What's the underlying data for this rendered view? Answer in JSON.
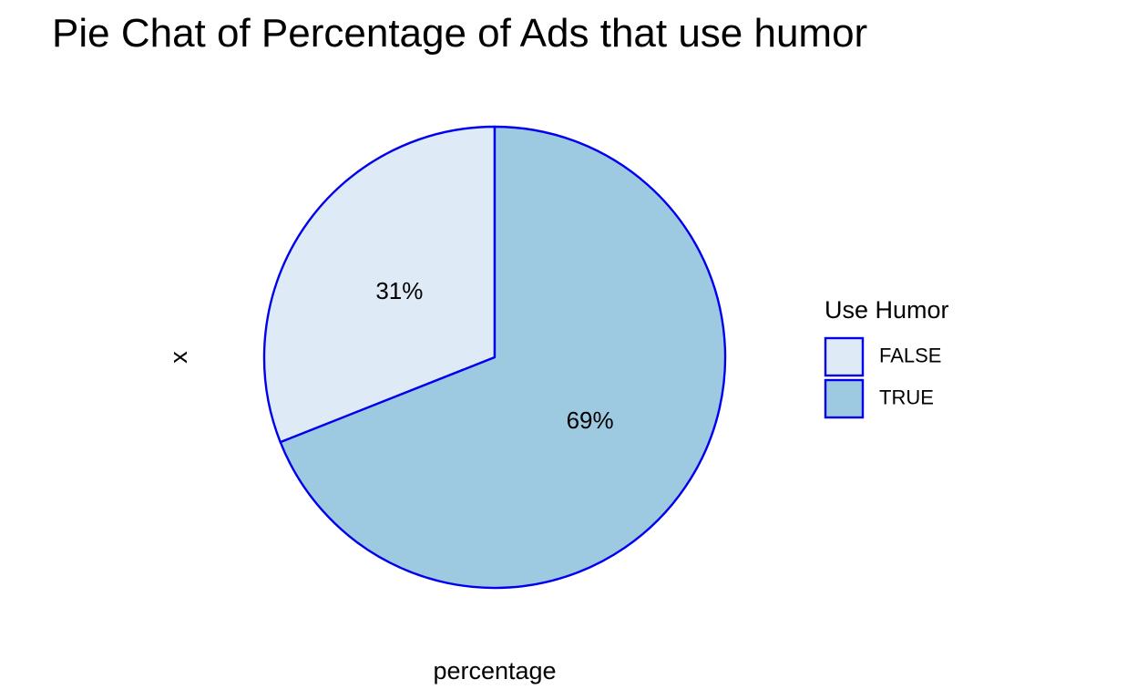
{
  "chart_data": {
    "type": "pie",
    "title": "Pie Chat of Percentage of Ads that use humor",
    "xlabel": "percentage",
    "ylabel": "x",
    "legend": {
      "title": "Use Humor",
      "placement": "right"
    },
    "categories": [
      "FALSE",
      "TRUE"
    ],
    "values": [
      31,
      69
    ],
    "labels": [
      "31%",
      "69%"
    ],
    "colors": [
      "#deebf7",
      "#9ecae1"
    ],
    "outline_color": "#0000ee"
  }
}
